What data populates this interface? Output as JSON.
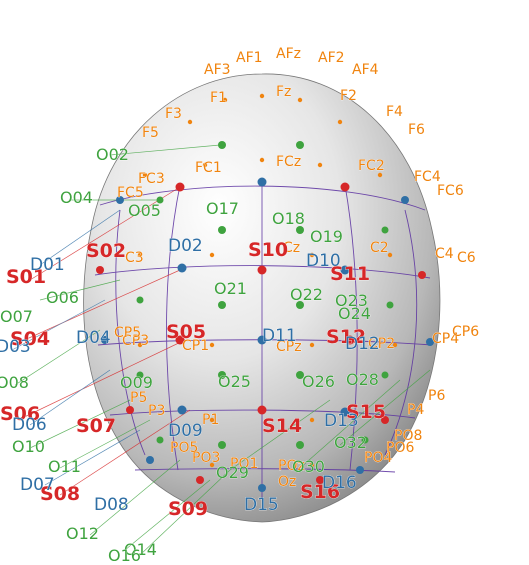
{
  "colors": {
    "eeg": "#f0840f",
    "source": "#d62728",
    "detector": "#2f6fa5",
    "channel": "#3fa33f",
    "grid": "#5a2fa0"
  },
  "labels": {
    "eeg": [
      "AF1",
      "AFz",
      "AF2",
      "AF3",
      "AF4",
      "F1",
      "Fz",
      "F2",
      "F3",
      "F4",
      "F5",
      "F6",
      "FC1",
      "FCz",
      "FC2",
      "FC3",
      "FC4",
      "FC5",
      "FC6",
      "C3",
      "Cz",
      "C2",
      "C4",
      "C6",
      "CP3",
      "CP4",
      "CP5",
      "CP6",
      "CP1",
      "CPz",
      "CP2",
      "P5",
      "P3",
      "P1",
      "P4",
      "P6",
      "PO3",
      "PO4",
      "PO5",
      "PO6",
      "PO8",
      "POz",
      "Oz",
      "PO1"
    ],
    "sources": [
      "S01",
      "S02",
      "S04",
      "S05",
      "S06",
      "S07",
      "S08",
      "S09",
      "S10",
      "S11",
      "S12",
      "S14",
      "S15",
      "S16"
    ],
    "detectors": [
      "D01",
      "D02",
      "D03",
      "D04",
      "D06",
      "D07",
      "D08",
      "D09",
      "D10",
      "D11",
      "D12",
      "D13",
      "D15",
      "D16"
    ],
    "channels": [
      "O02",
      "O04",
      "O05",
      "O06",
      "O07",
      "O08",
      "O09",
      "O10",
      "O11",
      "O12",
      "O14",
      "O16",
      "O17",
      "O18",
      "O19",
      "O21",
      "O22",
      "O23",
      "O24",
      "O25",
      "O26",
      "O28",
      "O29",
      "O30",
      "O32"
    ]
  }
}
